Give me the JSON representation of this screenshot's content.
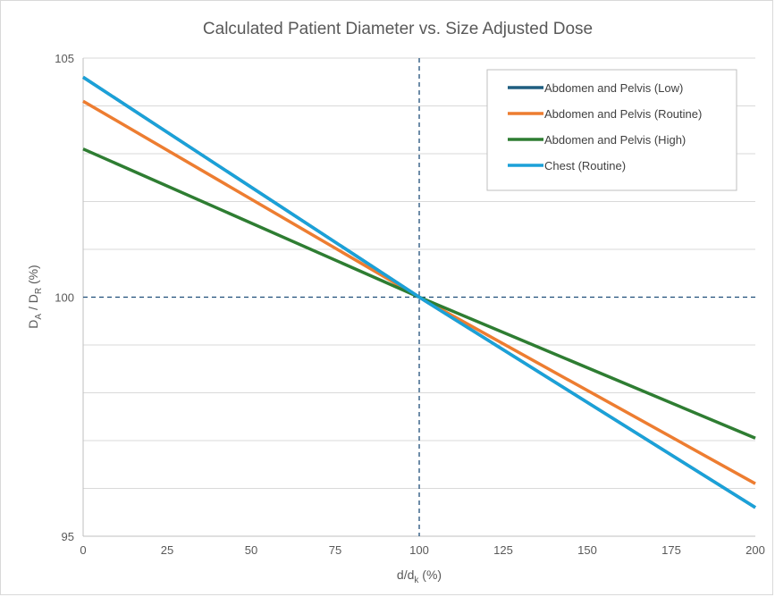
{
  "chart_data": {
    "type": "line",
    "title": "Calculated Patient Diameter vs. Size Adjusted Dose",
    "xlabel": {
      "main": "d/d",
      "sub": "k",
      "suffix": " (%)"
    },
    "ylabel": {
      "p1": "D",
      "s1": "A",
      "p2": " / D",
      "s2": "R",
      "suffix": " (%)"
    },
    "xlim": [
      0,
      200
    ],
    "ylim": [
      95,
      105
    ],
    "x_ticks": [
      "0",
      "25",
      "50",
      "75",
      "100",
      "125",
      "150",
      "175",
      "200"
    ],
    "x_tick_values": [
      0,
      25,
      50,
      75,
      100,
      125,
      150,
      175,
      200
    ],
    "y_ticks": [
      "95",
      "100",
      "105"
    ],
    "y_tick_values": [
      95,
      100,
      105
    ],
    "y_gridlines": [
      96,
      97,
      98,
      99,
      101,
      102,
      103,
      104,
      105
    ],
    "reference_lines": {
      "x": 100,
      "y": 100,
      "color": "#1f4e79",
      "style": "dashed"
    },
    "legend_position": "top-right",
    "series": [
      {
        "name": "Abdomen and Pelvis (Low)",
        "color": "#1f5e80",
        "x": [
          0,
          100,
          200
        ],
        "y": [
          104.6,
          100,
          95.6
        ]
      },
      {
        "name": "Abdomen and Pelvis (Routine)",
        "color": "#ed7d31",
        "x": [
          0,
          100,
          200
        ],
        "y": [
          104.1,
          100,
          96.1
        ]
      },
      {
        "name": "Abdomen and Pelvis (High)",
        "color": "#2e7d32",
        "x": [
          0,
          100,
          200
        ],
        "y": [
          103.1,
          100,
          97.05
        ]
      },
      {
        "name": "Chest (Routine)",
        "color": "#1ba1d8",
        "x": [
          0,
          100,
          200
        ],
        "y": [
          104.6,
          100,
          95.6
        ]
      }
    ]
  }
}
